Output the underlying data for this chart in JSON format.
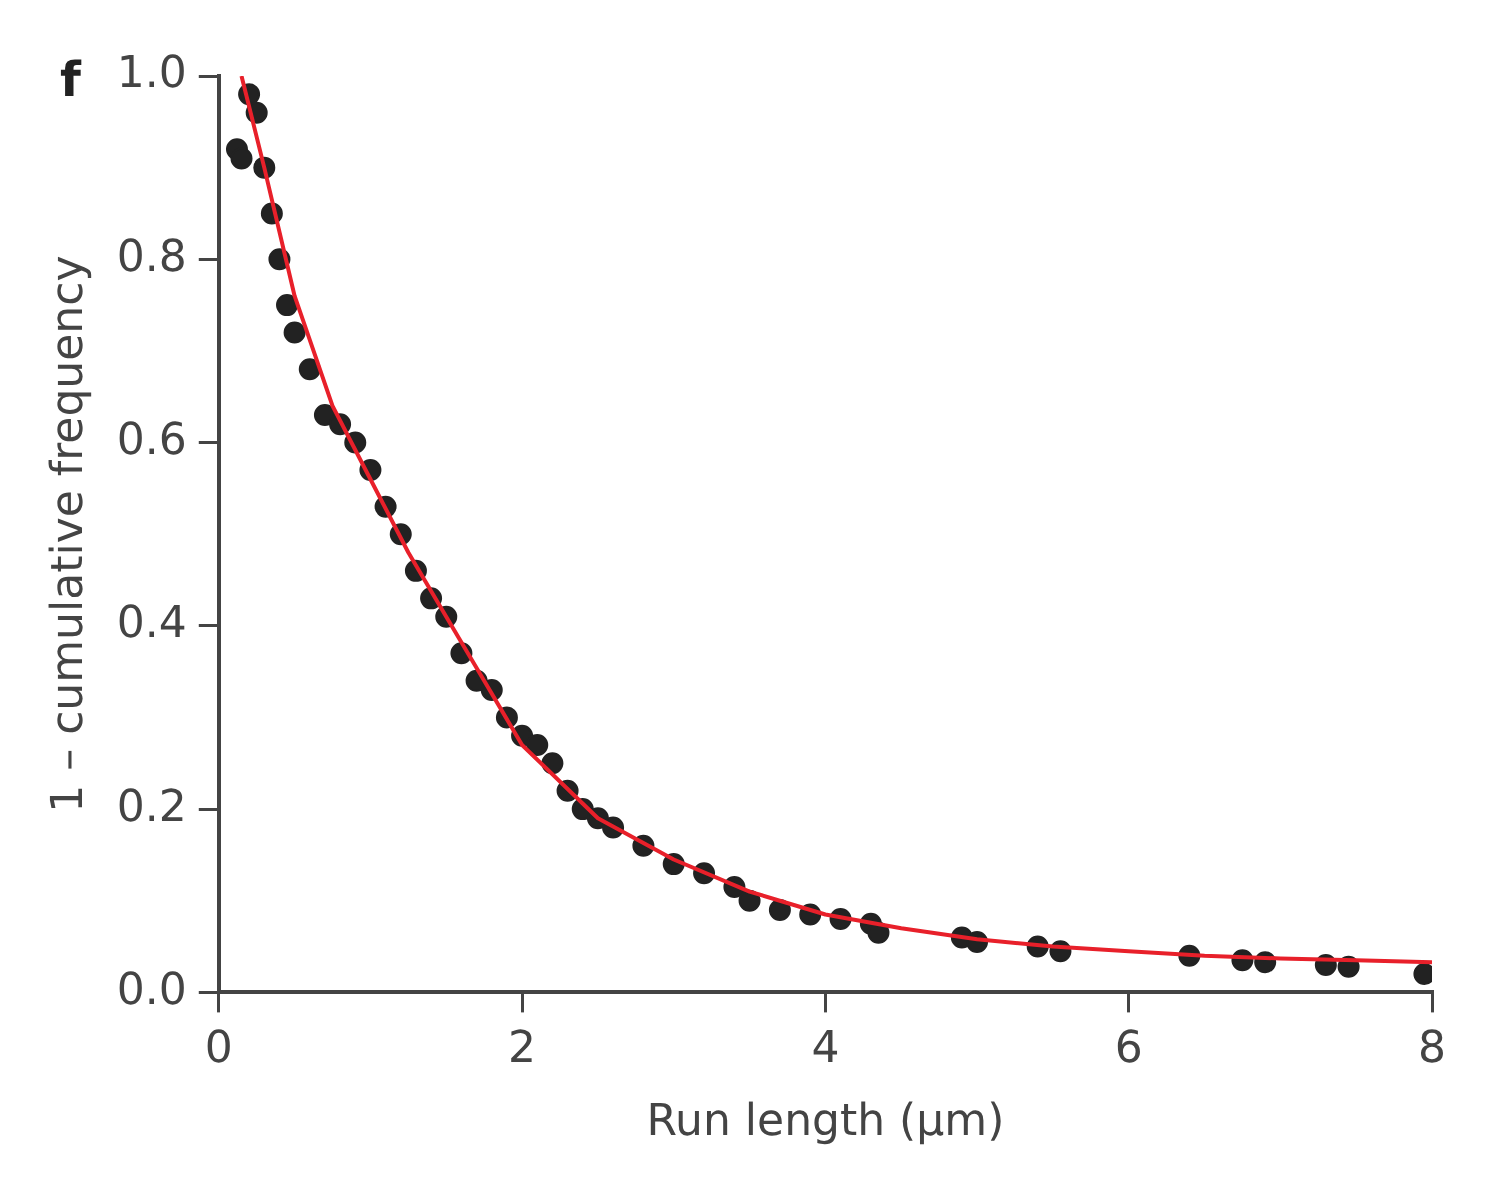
{
  "chart_data": {
    "type": "scatter",
    "xlabel": "Run length (µm)",
    "ylabel": "1 – cumulative frequency",
    "annotations": [
      "f"
    ],
    "xlim": [
      0,
      8
    ],
    "xticks": [
      0,
      2,
      4,
      6,
      8
    ],
    "ylim": [
      0,
      1
    ],
    "yticks": [
      {
        "value": 0,
        "label": "0.0"
      },
      {
        "value": 0.2,
        "label": "0.2"
      },
      {
        "value": 0.4,
        "label": "0.4"
      },
      {
        "value": 0.6,
        "label": "0.6"
      },
      {
        "value": 0.8,
        "label": "0.8"
      },
      {
        "value": 1,
        "label": "1.0"
      }
    ],
    "grid": false,
    "legend": false,
    "marker": "circle",
    "series": [
      {
        "type": "scatter",
        "color": "#222222",
        "x": [
          0.12,
          0.15,
          0.2,
          0.25,
          0.3,
          0.35,
          0.4,
          0.45,
          0.5,
          0.6,
          0.7,
          0.8,
          0.9,
          1.0,
          1.1,
          1.2,
          1.3,
          1.4,
          1.5,
          1.6,
          1.7,
          1.8,
          1.9,
          2.0,
          2.1,
          2.2,
          2.3,
          2.4,
          2.5,
          2.6,
          2.8,
          3.0,
          3.2,
          3.4,
          3.5,
          3.7,
          3.9,
          4.1,
          4.3,
          4.35,
          4.9,
          5.0,
          5.4,
          5.55,
          6.4,
          6.75,
          6.9,
          7.3,
          7.45,
          7.95
        ],
        "values": [
          0.92,
          0.91,
          0.98,
          0.96,
          0.9,
          0.85,
          0.8,
          0.75,
          0.72,
          0.68,
          0.63,
          0.62,
          0.6,
          0.57,
          0.53,
          0.5,
          0.46,
          0.43,
          0.41,
          0.37,
          0.34,
          0.33,
          0.3,
          0.28,
          0.27,
          0.25,
          0.22,
          0.2,
          0.19,
          0.18,
          0.16,
          0.14,
          0.13,
          0.115,
          0.1,
          0.09,
          0.085,
          0.08,
          0.075,
          0.065,
          0.06,
          0.055,
          0.05,
          0.045,
          0.04,
          0.035,
          0.033,
          0.03,
          0.028,
          0.02
        ]
      },
      {
        "type": "line",
        "color": "#e8202a",
        "marker": "none",
        "line_style": "solid",
        "x": [
          0.15,
          0.3,
          0.5,
          0.75,
          1.0,
          1.25,
          1.5,
          1.75,
          2.0,
          2.5,
          3.0,
          3.5,
          4.0,
          4.5,
          5.0,
          5.5,
          6.0,
          6.5,
          7.0,
          7.5,
          8.0
        ],
        "values": [
          1.0,
          0.9,
          0.76,
          0.64,
          0.56,
          0.48,
          0.41,
          0.34,
          0.27,
          0.19,
          0.145,
          0.11,
          0.085,
          0.07,
          0.058,
          0.05,
          0.045,
          0.04,
          0.037,
          0.035,
          0.033
        ]
      }
    ]
  }
}
